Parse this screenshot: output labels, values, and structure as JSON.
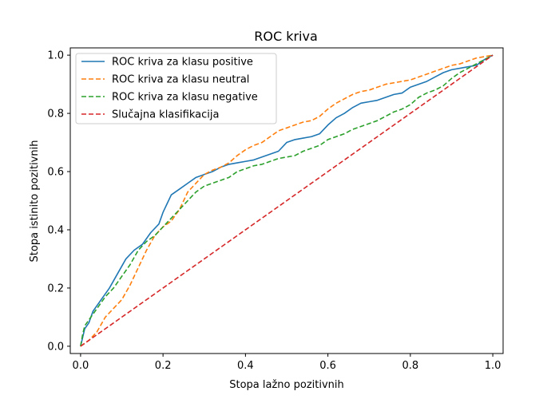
{
  "chart_data": {
    "type": "line",
    "title": "ROC kriva",
    "xlabel": "Stopa lažno pozitivnih",
    "ylabel": "Stopa istinito pozitivnih",
    "xlim": [
      -0.025,
      1.025
    ],
    "ylim": [
      -0.025,
      1.025
    ],
    "xticks": [
      0.0,
      0.2,
      0.4,
      0.6,
      0.8,
      1.0
    ],
    "yticks": [
      0.0,
      0.2,
      0.4,
      0.6,
      0.8,
      1.0
    ],
    "xtick_labels": [
      "0.0",
      "0.2",
      "0.4",
      "0.6",
      "0.8",
      "1.0"
    ],
    "ytick_labels": [
      "0.0",
      "0.2",
      "0.4",
      "0.6",
      "0.8",
      "1.0"
    ],
    "grid": false,
    "legend_position": "top-left",
    "series": [
      {
        "name": "ROC kriva za klasu positive",
        "color": "#1f77b4",
        "linestyle": "solid",
        "x": [
          0.0,
          0.005,
          0.01,
          0.02,
          0.03,
          0.05,
          0.07,
          0.09,
          0.11,
          0.13,
          0.15,
          0.17,
          0.19,
          0.2,
          0.21,
          0.22,
          0.24,
          0.26,
          0.28,
          0.3,
          0.32,
          0.34,
          0.36,
          0.38,
          0.4,
          0.42,
          0.44,
          0.46,
          0.48,
          0.5,
          0.52,
          0.54,
          0.56,
          0.58,
          0.6,
          0.62,
          0.64,
          0.66,
          0.68,
          0.7,
          0.72,
          0.74,
          0.76,
          0.78,
          0.8,
          0.82,
          0.84,
          0.86,
          0.88,
          0.9,
          0.92,
          0.94,
          0.96,
          0.98,
          1.0
        ],
        "y": [
          0.0,
          0.03,
          0.06,
          0.08,
          0.12,
          0.16,
          0.2,
          0.25,
          0.3,
          0.33,
          0.35,
          0.39,
          0.42,
          0.46,
          0.49,
          0.52,
          0.54,
          0.56,
          0.58,
          0.59,
          0.6,
          0.615,
          0.625,
          0.63,
          0.635,
          0.64,
          0.65,
          0.66,
          0.67,
          0.7,
          0.71,
          0.715,
          0.72,
          0.73,
          0.76,
          0.785,
          0.8,
          0.82,
          0.835,
          0.84,
          0.845,
          0.855,
          0.865,
          0.87,
          0.89,
          0.9,
          0.91,
          0.925,
          0.94,
          0.95,
          0.955,
          0.96,
          0.965,
          0.985,
          1.0
        ]
      },
      {
        "name": "ROC kriva za klasu neutral",
        "color": "#ff7f0e",
        "linestyle": "dashed",
        "x": [
          0.0,
          0.02,
          0.04,
          0.06,
          0.08,
          0.1,
          0.12,
          0.14,
          0.16,
          0.18,
          0.2,
          0.22,
          0.24,
          0.26,
          0.28,
          0.3,
          0.32,
          0.34,
          0.36,
          0.38,
          0.4,
          0.42,
          0.44,
          0.46,
          0.48,
          0.5,
          0.52,
          0.54,
          0.56,
          0.58,
          0.6,
          0.62,
          0.64,
          0.66,
          0.68,
          0.7,
          0.72,
          0.74,
          0.76,
          0.78,
          0.8,
          0.82,
          0.84,
          0.86,
          0.88,
          0.9,
          0.92,
          0.94,
          0.96,
          0.98,
          1.0
        ],
        "y": [
          0.0,
          0.02,
          0.05,
          0.1,
          0.13,
          0.16,
          0.21,
          0.27,
          0.33,
          0.38,
          0.41,
          0.43,
          0.47,
          0.53,
          0.56,
          0.59,
          0.605,
          0.615,
          0.63,
          0.655,
          0.675,
          0.69,
          0.7,
          0.72,
          0.74,
          0.75,
          0.76,
          0.77,
          0.775,
          0.79,
          0.815,
          0.835,
          0.85,
          0.865,
          0.875,
          0.88,
          0.89,
          0.9,
          0.905,
          0.91,
          0.915,
          0.925,
          0.935,
          0.945,
          0.955,
          0.965,
          0.97,
          0.98,
          0.99,
          0.995,
          1.0
        ]
      },
      {
        "name": "ROC kriva za klasu negative",
        "color": "#2ca02c",
        "linestyle": "dashed",
        "x": [
          0.0,
          0.005,
          0.01,
          0.02,
          0.04,
          0.06,
          0.08,
          0.1,
          0.12,
          0.14,
          0.16,
          0.18,
          0.2,
          0.22,
          0.24,
          0.26,
          0.28,
          0.3,
          0.32,
          0.34,
          0.36,
          0.38,
          0.4,
          0.42,
          0.44,
          0.46,
          0.48,
          0.5,
          0.52,
          0.54,
          0.56,
          0.58,
          0.6,
          0.62,
          0.64,
          0.66,
          0.68,
          0.7,
          0.72,
          0.74,
          0.76,
          0.78,
          0.8,
          0.82,
          0.84,
          0.86,
          0.88,
          0.9,
          0.92,
          0.94,
          0.96,
          0.98,
          1.0
        ],
        "y": [
          0.0,
          0.04,
          0.07,
          0.09,
          0.13,
          0.17,
          0.2,
          0.24,
          0.28,
          0.33,
          0.36,
          0.38,
          0.41,
          0.44,
          0.47,
          0.5,
          0.53,
          0.55,
          0.56,
          0.57,
          0.58,
          0.6,
          0.61,
          0.62,
          0.625,
          0.635,
          0.645,
          0.65,
          0.655,
          0.67,
          0.68,
          0.69,
          0.71,
          0.72,
          0.73,
          0.745,
          0.755,
          0.765,
          0.775,
          0.79,
          0.805,
          0.815,
          0.83,
          0.855,
          0.87,
          0.88,
          0.895,
          0.92,
          0.94,
          0.955,
          0.97,
          0.985,
          1.0
        ]
      },
      {
        "name": "Slučajna klasifikacija",
        "color": "#d62728",
        "linestyle": "dashed",
        "x": [
          0.0,
          1.0
        ],
        "y": [
          0.0,
          1.0
        ]
      }
    ]
  }
}
